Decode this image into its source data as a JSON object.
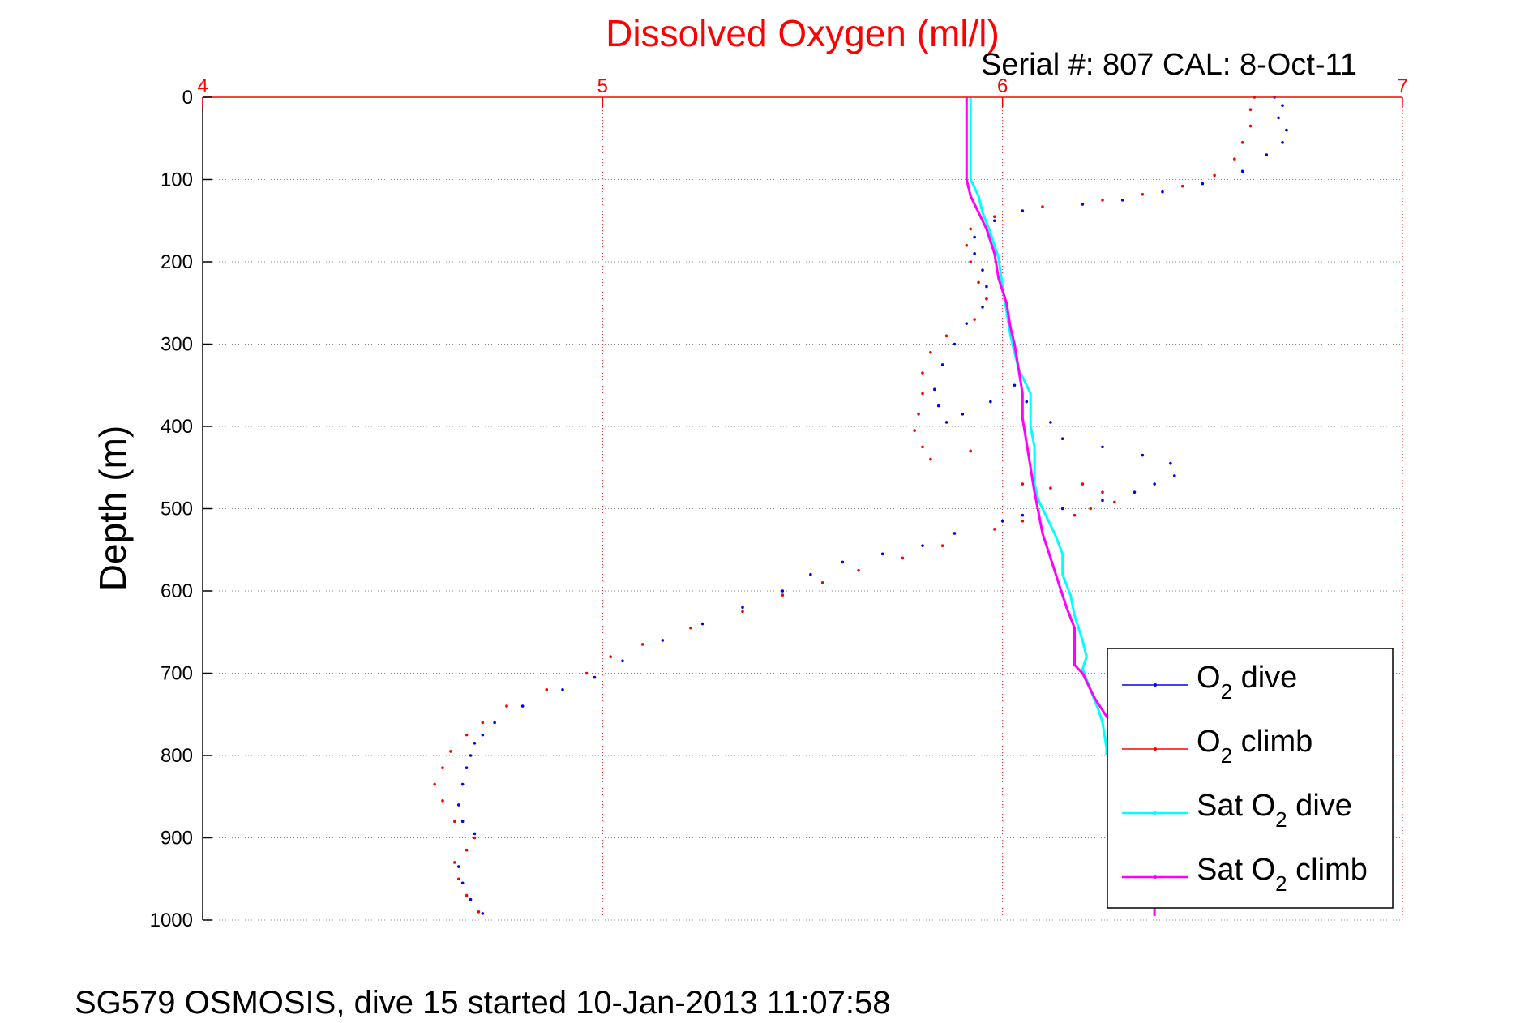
{
  "chart_data": {
    "type": "scatter",
    "title": "Dissolved Oxygen (ml/l)",
    "subtitle": "Serial #: 807  CAL: 8-Oct-11",
    "xlabel": "Dissolved Oxygen (ml/l)",
    "ylabel": "Depth (m)",
    "xlim": [
      4,
      7
    ],
    "ylim": [
      0,
      1000
    ],
    "y_reversed": true,
    "x_axis_position": "top",
    "xticks": [
      4,
      5,
      6,
      7
    ],
    "yticks": [
      0,
      100,
      200,
      300,
      400,
      500,
      600,
      700,
      800,
      900,
      1000
    ],
    "grid": true,
    "legend_position": "bottom-right",
    "footer": "SG579 OSMOSIS, dive 15 started 10-Jan-2013 11:07:58",
    "colors": {
      "title": "#ff0000",
      "x_axis": "#ff0000",
      "grid": "#888888",
      "O2_dive": "#0000ff",
      "O2_climb": "#ff0000",
      "Sat_O2_dive": "#00ffff",
      "Sat_O2_climb": "#ff00ff"
    },
    "series": [
      {
        "name": "O2 dive",
        "legend_parts": [
          "O",
          "2",
          " dive"
        ],
        "style": "points",
        "color": "#0000ff",
        "points": [
          [
            6.68,
            0
          ],
          [
            6.7,
            10
          ],
          [
            6.69,
            25
          ],
          [
            6.71,
            40
          ],
          [
            6.7,
            55
          ],
          [
            6.66,
            70
          ],
          [
            6.6,
            90
          ],
          [
            6.5,
            105
          ],
          [
            6.4,
            115
          ],
          [
            6.3,
            125
          ],
          [
            6.2,
            130
          ],
          [
            6.05,
            138
          ],
          [
            5.98,
            150
          ],
          [
            5.93,
            170
          ],
          [
            5.93,
            190
          ],
          [
            5.95,
            210
          ],
          [
            5.96,
            230
          ],
          [
            5.95,
            255
          ],
          [
            5.91,
            275
          ],
          [
            5.88,
            300
          ],
          [
            5.85,
            325
          ],
          [
            5.83,
            355
          ],
          [
            5.84,
            375
          ],
          [
            5.86,
            395
          ],
          [
            5.9,
            385
          ],
          [
            5.97,
            370
          ],
          [
            6.03,
            350
          ],
          [
            6.06,
            370
          ],
          [
            6.12,
            395
          ],
          [
            6.15,
            415
          ],
          [
            6.25,
            425
          ],
          [
            6.35,
            435
          ],
          [
            6.42,
            445
          ],
          [
            6.43,
            460
          ],
          [
            6.38,
            470
          ],
          [
            6.33,
            480
          ],
          [
            6.25,
            490
          ],
          [
            6.15,
            500
          ],
          [
            6.05,
            508
          ],
          [
            6.0,
            515
          ],
          [
            5.88,
            530
          ],
          [
            5.8,
            545
          ],
          [
            5.7,
            555
          ],
          [
            5.6,
            565
          ],
          [
            5.52,
            580
          ],
          [
            5.45,
            600
          ],
          [
            5.35,
            620
          ],
          [
            5.25,
            640
          ],
          [
            5.15,
            660
          ],
          [
            5.05,
            685
          ],
          [
            4.98,
            705
          ],
          [
            4.9,
            720
          ],
          [
            4.8,
            740
          ],
          [
            4.73,
            760
          ],
          [
            4.7,
            775
          ],
          [
            4.68,
            785
          ],
          [
            4.67,
            800
          ],
          [
            4.66,
            815
          ],
          [
            4.65,
            835
          ],
          [
            4.64,
            860
          ],
          [
            4.65,
            880
          ],
          [
            4.68,
            895
          ],
          [
            4.66,
            915
          ],
          [
            4.64,
            935
          ],
          [
            4.65,
            955
          ],
          [
            4.67,
            975
          ],
          [
            4.7,
            992
          ]
        ]
      },
      {
        "name": "O2 climb",
        "legend_parts": [
          "O",
          "2",
          " climb"
        ],
        "style": "points",
        "color": "#ff0000",
        "points": [
          [
            6.63,
            0
          ],
          [
            6.62,
            15
          ],
          [
            6.62,
            35
          ],
          [
            6.6,
            55
          ],
          [
            6.58,
            75
          ],
          [
            6.53,
            95
          ],
          [
            6.45,
            108
          ],
          [
            6.35,
            118
          ],
          [
            6.25,
            125
          ],
          [
            6.1,
            133
          ],
          [
            5.98,
            145
          ],
          [
            5.92,
            160
          ],
          [
            5.91,
            180
          ],
          [
            5.92,
            200
          ],
          [
            5.94,
            225
          ],
          [
            5.96,
            245
          ],
          [
            5.93,
            270
          ],
          [
            5.86,
            290
          ],
          [
            5.82,
            310
          ],
          [
            5.8,
            335
          ],
          [
            5.8,
            360
          ],
          [
            5.79,
            385
          ],
          [
            5.78,
            405
          ],
          [
            5.8,
            425
          ],
          [
            5.82,
            440
          ],
          [
            5.92,
            430
          ],
          [
            6.05,
            470
          ],
          [
            6.12,
            475
          ],
          [
            6.2,
            470
          ],
          [
            6.25,
            480
          ],
          [
            6.28,
            492
          ],
          [
            6.22,
            500
          ],
          [
            6.18,
            508
          ],
          [
            6.05,
            515
          ],
          [
            5.98,
            525
          ],
          [
            5.85,
            545
          ],
          [
            5.75,
            560
          ],
          [
            5.64,
            575
          ],
          [
            5.55,
            590
          ],
          [
            5.45,
            605
          ],
          [
            5.35,
            625
          ],
          [
            5.22,
            645
          ],
          [
            5.1,
            665
          ],
          [
            5.02,
            680
          ],
          [
            4.96,
            700
          ],
          [
            4.86,
            720
          ],
          [
            4.76,
            740
          ],
          [
            4.7,
            760
          ],
          [
            4.66,
            775
          ],
          [
            4.62,
            795
          ],
          [
            4.6,
            815
          ],
          [
            4.58,
            835
          ],
          [
            4.6,
            855
          ],
          [
            4.63,
            880
          ],
          [
            4.68,
            900
          ],
          [
            4.66,
            915
          ],
          [
            4.63,
            930
          ],
          [
            4.64,
            950
          ],
          [
            4.66,
            970
          ],
          [
            4.69,
            990
          ]
        ]
      },
      {
        "name": "Sat O2 dive",
        "legend_parts": [
          "Sat O",
          "2",
          " dive"
        ],
        "style": "line",
        "color": "#00ffff",
        "points": [
          [
            5.92,
            0
          ],
          [
            5.92,
            50
          ],
          [
            5.92,
            100
          ],
          [
            5.94,
            120
          ],
          [
            5.95,
            140
          ],
          [
            5.97,
            165
          ],
          [
            5.99,
            195
          ],
          [
            6.0,
            230
          ],
          [
            6.01,
            260
          ],
          [
            6.02,
            290
          ],
          [
            6.03,
            310
          ],
          [
            6.04,
            330
          ],
          [
            6.07,
            360
          ],
          [
            6.07,
            380
          ],
          [
            6.07,
            400
          ],
          [
            6.08,
            425
          ],
          [
            6.08,
            450
          ],
          [
            6.08,
            470
          ],
          [
            6.09,
            490
          ],
          [
            6.11,
            510
          ],
          [
            6.13,
            530
          ],
          [
            6.15,
            555
          ],
          [
            6.15,
            580
          ],
          [
            6.17,
            605
          ],
          [
            6.18,
            630
          ],
          [
            6.2,
            660
          ],
          [
            6.21,
            680
          ],
          [
            6.2,
            695
          ],
          [
            6.22,
            720
          ],
          [
            6.24,
            745
          ],
          [
            6.25,
            760
          ],
          [
            6.26,
            790
          ],
          [
            6.26,
            800
          ]
        ]
      },
      {
        "name": "Sat O2 climb",
        "legend_parts": [
          "Sat O",
          "2",
          " climb"
        ],
        "style": "line",
        "color": "#ff00ff",
        "points": [
          [
            5.91,
            0
          ],
          [
            5.91,
            50
          ],
          [
            5.91,
            100
          ],
          [
            5.92,
            120
          ],
          [
            5.94,
            140
          ],
          [
            5.96,
            160
          ],
          [
            5.98,
            190
          ],
          [
            5.99,
            220
          ],
          [
            6.01,
            250
          ],
          [
            6.02,
            280
          ],
          [
            6.03,
            300
          ],
          [
            6.04,
            330
          ],
          [
            6.05,
            360
          ],
          [
            6.05,
            390
          ],
          [
            6.06,
            420
          ],
          [
            6.07,
            450
          ],
          [
            6.08,
            480
          ],
          [
            6.09,
            505
          ],
          [
            6.1,
            530
          ],
          [
            6.12,
            560
          ],
          [
            6.14,
            590
          ],
          [
            6.16,
            620
          ],
          [
            6.18,
            645
          ],
          [
            6.18,
            670
          ],
          [
            6.18,
            690
          ],
          [
            6.2,
            700
          ],
          [
            6.23,
            730
          ],
          [
            6.27,
            760
          ],
          [
            6.3,
            800
          ],
          [
            6.33,
            840
          ],
          [
            6.36,
            880
          ],
          [
            6.38,
            920
          ],
          [
            6.38,
            960
          ],
          [
            6.38,
            995
          ]
        ]
      }
    ]
  }
}
